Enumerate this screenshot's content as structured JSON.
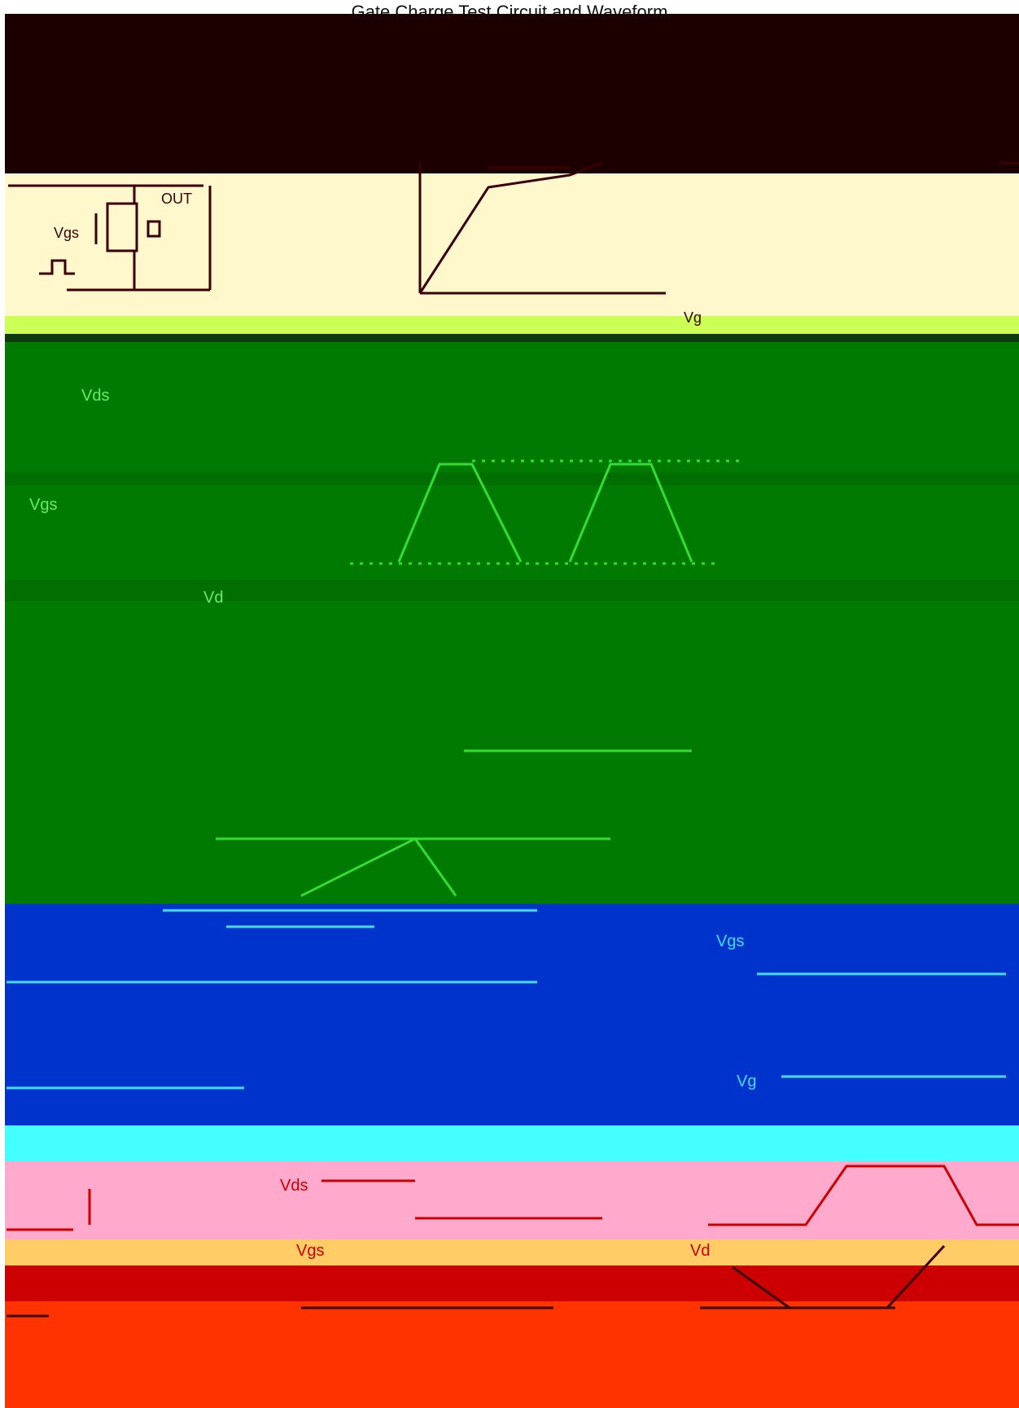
{
  "title": "Gate Charge Test Circuit and Waveform",
  "colors": {
    "top_band": "#1c0000",
    "circuit_panel": "#fff8cc",
    "lime_strip": "#ccff55",
    "dark_strip": "#0c3a0c",
    "switching_panel": "#007a00",
    "switching_strip": "#006e00",
    "switching_trace": "#33dd33",
    "blue_panel": "#0033cc",
    "blue_trace": "#44ddff",
    "cyan_strip": "#44ffff",
    "pink_panel": "#ffaacc",
    "orange_strip": "#ffcc66",
    "red_strip": "#cc0000",
    "orange_red_panel": "#ff3300",
    "ink": "#3a0000"
  },
  "gate_charge": {
    "labels": {
      "out": "OUT",
      "vgs": "Vgs",
      "vg": "Vg"
    }
  },
  "switching": {
    "labels": {
      "vds": "Vds",
      "vgs": "Vgs",
      "vd": "Vd"
    }
  },
  "blue": {
    "labels": {
      "vgs": "Vgs",
      "vg": "Vg"
    }
  },
  "pink": {
    "labels": {
      "vds": "Vds",
      "vgs": "Vgs",
      "vd": "Vd"
    }
  }
}
